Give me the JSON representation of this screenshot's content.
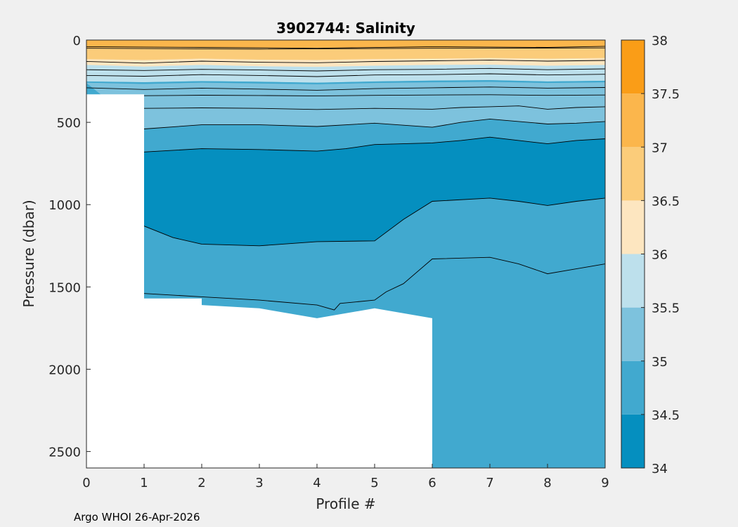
{
  "chart_data": {
    "type": "filled-contour",
    "title": "3902744:  Salinity",
    "xlabel": "Profile #",
    "ylabel": "Pressure (dbar)",
    "xlim": [
      0,
      9
    ],
    "ylim": [
      0,
      2600
    ],
    "y_reversed": true,
    "xticks": [
      0,
      1,
      2,
      3,
      4,
      5,
      6,
      7,
      8,
      9
    ],
    "yticks": [
      0,
      500,
      1000,
      1500,
      2000,
      2500
    ],
    "colorbar": {
      "levels": [
        34,
        34.5,
        35,
        35.5,
        36,
        36.5,
        37,
        37.5,
        38
      ],
      "tick_labels": [
        "34",
        "34.5",
        "35",
        "35.5",
        "36",
        "36.5",
        "37",
        "37.5",
        "38"
      ],
      "colors": [
        "#058fbf",
        "#41a9cf",
        "#7dc2dd",
        "#bde0ec",
        "#fde6c0",
        "#fbcc7a",
        "#fbb64c",
        "#fa9d17"
      ]
    },
    "background_color": "#41a9cf",
    "contour_bands": [
      {
        "color": "#058fbf",
        "top": [
          [
            1,
            680
          ],
          [
            2,
            660
          ],
          [
            3,
            665
          ],
          [
            4,
            675
          ],
          [
            4.5,
            660
          ],
          [
            5,
            635
          ],
          [
            6,
            625
          ],
          [
            6.5,
            610
          ],
          [
            7,
            590
          ],
          [
            7.5,
            610
          ],
          [
            8,
            630
          ],
          [
            8.5,
            610
          ],
          [
            9,
            600
          ]
        ],
        "bottom": [
          [
            1,
            1130
          ],
          [
            1.5,
            1200
          ],
          [
            2,
            1240
          ],
          [
            3,
            1250
          ],
          [
            4,
            1225
          ],
          [
            5,
            1220
          ],
          [
            5.5,
            1090
          ],
          [
            6,
            980
          ],
          [
            7,
            960
          ],
          [
            7.5,
            980
          ],
          [
            8,
            1005
          ],
          [
            8.5,
            980
          ],
          [
            9,
            960
          ]
        ]
      },
      {
        "color": "#7dc2dd",
        "top": [
          [
            0,
            260
          ],
          [
            1,
            268
          ],
          [
            2,
            260
          ],
          [
            3,
            265
          ],
          [
            4,
            270
          ],
          [
            5,
            262
          ],
          [
            6,
            258
          ],
          [
            7,
            255
          ],
          [
            8,
            262
          ],
          [
            9,
            258
          ]
        ],
        "bottom": [
          [
            1,
            540
          ],
          [
            2,
            515
          ],
          [
            3,
            515
          ],
          [
            4,
            525
          ],
          [
            5,
            505
          ],
          [
            6,
            530
          ],
          [
            6.5,
            500
          ],
          [
            7,
            480
          ],
          [
            7.5,
            495
          ],
          [
            8,
            510
          ],
          [
            8.5,
            505
          ],
          [
            9,
            495
          ]
        ]
      },
      {
        "color": "#bde0ec",
        "top": [
          [
            0,
            150
          ],
          [
            1,
            160
          ],
          [
            2,
            150
          ],
          [
            3,
            158
          ],
          [
            4,
            162
          ],
          [
            5,
            155
          ],
          [
            6,
            150
          ],
          [
            7,
            148
          ],
          [
            8,
            155
          ],
          [
            9,
            150
          ]
        ],
        "bottom": [
          [
            0,
            250
          ],
          [
            1,
            255
          ],
          [
            2,
            248
          ],
          [
            3,
            252
          ],
          [
            4,
            258
          ],
          [
            5,
            250
          ],
          [
            6,
            245
          ],
          [
            7,
            242
          ],
          [
            8,
            250
          ],
          [
            9,
            246
          ]
        ]
      },
      {
        "color": "#fde6c0",
        "top": [
          [
            0,
            115
          ],
          [
            1,
            120
          ],
          [
            2,
            112
          ],
          [
            3,
            118
          ],
          [
            4,
            120
          ],
          [
            5,
            114
          ],
          [
            6,
            112
          ],
          [
            7,
            108
          ],
          [
            8,
            112
          ],
          [
            9,
            108
          ]
        ],
        "bottom": [
          [
            0,
            150
          ],
          [
            1,
            160
          ],
          [
            2,
            150
          ],
          [
            3,
            158
          ],
          [
            4,
            162
          ],
          [
            5,
            155
          ],
          [
            6,
            150
          ],
          [
            7,
            148
          ],
          [
            8,
            155
          ],
          [
            9,
            150
          ]
        ]
      },
      {
        "color": "#fbcc7a",
        "top": [
          [
            0,
            45
          ],
          [
            1,
            45
          ],
          [
            2,
            44
          ],
          [
            3,
            48
          ],
          [
            4,
            45
          ],
          [
            5,
            46
          ],
          [
            6,
            46
          ],
          [
            7,
            44
          ],
          [
            8,
            45
          ],
          [
            9,
            40
          ]
        ],
        "bottom": [
          [
            0,
            115
          ],
          [
            1,
            120
          ],
          [
            2,
            112
          ],
          [
            3,
            118
          ],
          [
            4,
            120
          ],
          [
            5,
            114
          ],
          [
            6,
            112
          ],
          [
            7,
            108
          ],
          [
            8,
            112
          ],
          [
            9,
            108
          ]
        ]
      },
      {
        "color": "#fbb64c",
        "top": [
          [
            0,
            0
          ],
          [
            9,
            0
          ]
        ],
        "bottom": [
          [
            0,
            45
          ],
          [
            1,
            45
          ],
          [
            2,
            44
          ],
          [
            3,
            48
          ],
          [
            4,
            45
          ],
          [
            5,
            46
          ],
          [
            6,
            46
          ],
          [
            7,
            44
          ],
          [
            8,
            45
          ],
          [
            9,
            40
          ]
        ]
      }
    ],
    "contour_lines": [
      [
        [
          0,
          40
        ],
        [
          2,
          45
        ],
        [
          4,
          50
        ],
        [
          6,
          40
        ],
        [
          8,
          45
        ],
        [
          9,
          38
        ]
      ],
      [
        [
          0,
          50
        ],
        [
          3,
          55
        ],
        [
          6,
          50
        ],
        [
          9,
          48
        ]
      ],
      [
        [
          0,
          130
        ],
        [
          1,
          140
        ],
        [
          2,
          128
        ],
        [
          3,
          135
        ],
        [
          4,
          138
        ],
        [
          5,
          130
        ],
        [
          6,
          126
        ],
        [
          7,
          122
        ],
        [
          8,
          128
        ],
        [
          9,
          124
        ]
      ],
      [
        [
          0,
          180
        ],
        [
          1,
          185
        ],
        [
          2,
          178
        ],
        [
          3,
          182
        ],
        [
          4,
          188
        ],
        [
          5,
          180
        ],
        [
          6,
          178
        ],
        [
          7,
          172
        ],
        [
          8,
          180
        ],
        [
          9,
          175
        ]
      ],
      [
        [
          0,
          215
        ],
        [
          1,
          220
        ],
        [
          2,
          210
        ],
        [
          3,
          215
        ],
        [
          4,
          222
        ],
        [
          5,
          212
        ],
        [
          6,
          210
        ],
        [
          7,
          205
        ],
        [
          8,
          212
        ],
        [
          9,
          208
        ]
      ],
      [
        [
          0,
          290
        ],
        [
          1,
          300
        ],
        [
          2,
          292
        ],
        [
          3,
          298
        ],
        [
          4,
          305
        ],
        [
          5,
          295
        ],
        [
          6,
          290
        ],
        [
          7,
          285
        ],
        [
          8,
          292
        ],
        [
          9,
          288
        ]
      ],
      [
        [
          0,
          335
        ],
        [
          1,
          338
        ],
        [
          2,
          335
        ],
        [
          3,
          337
        ],
        [
          4,
          340
        ],
        [
          5,
          336
        ],
        [
          6,
          334
        ],
        [
          7,
          332
        ],
        [
          8,
          336
        ],
        [
          9,
          334
        ]
      ],
      [
        [
          1,
          415
        ],
        [
          2,
          412
        ],
        [
          3,
          415
        ],
        [
          4,
          422
        ],
        [
          5,
          415
        ],
        [
          6,
          420
        ],
        [
          6.5,
          410
        ],
        [
          7,
          405
        ],
        [
          7.5,
          400
        ],
        [
          8,
          420
        ],
        [
          8.5,
          410
        ],
        [
          9,
          405
        ]
      ],
      [
        [
          1,
          540
        ],
        [
          2,
          515
        ],
        [
          3,
          515
        ],
        [
          4,
          525
        ],
        [
          5,
          505
        ],
        [
          6,
          530
        ],
        [
          6.5,
          500
        ],
        [
          7,
          480
        ],
        [
          7.5,
          495
        ],
        [
          8,
          510
        ],
        [
          8.5,
          505
        ],
        [
          9,
          495
        ]
      ],
      [
        [
          1,
          680
        ],
        [
          2,
          660
        ],
        [
          3,
          665
        ],
        [
          4,
          675
        ],
        [
          4.5,
          660
        ],
        [
          5,
          635
        ],
        [
          6,
          625
        ],
        [
          6.5,
          610
        ],
        [
          7,
          590
        ],
        [
          7.5,
          610
        ],
        [
          8,
          630
        ],
        [
          8.5,
          610
        ],
        [
          9,
          600
        ]
      ],
      [
        [
          1,
          1130
        ],
        [
          1.5,
          1200
        ],
        [
          2,
          1240
        ],
        [
          3,
          1250
        ],
        [
          4,
          1225
        ],
        [
          5,
          1220
        ],
        [
          5.5,
          1090
        ],
        [
          6,
          980
        ],
        [
          7,
          960
        ],
        [
          7.5,
          980
        ],
        [
          8,
          1005
        ],
        [
          8.5,
          980
        ],
        [
          9,
          960
        ]
      ],
      [
        [
          1,
          1540
        ],
        [
          2,
          1560
        ],
        [
          3,
          1580
        ],
        [
          4,
          1610
        ],
        [
          4.3,
          1640
        ],
        [
          4.4,
          1600
        ],
        [
          5,
          1580
        ],
        [
          5.2,
          1530
        ],
        [
          5.5,
          1480
        ],
        [
          6,
          1330
        ],
        [
          7,
          1320
        ],
        [
          7.5,
          1360
        ],
        [
          8,
          1420
        ],
        [
          8.5,
          1390
        ],
        [
          9,
          1360
        ]
      ]
    ],
    "no_data_mask": [
      [
        0,
        330
      ],
      [
        1,
        330
      ],
      [
        1,
        1570
      ],
      [
        2,
        1570
      ],
      [
        2,
        1610
      ],
      [
        3,
        1630
      ],
      [
        4,
        1690
      ],
      [
        5,
        1630
      ],
      [
        6,
        1690
      ],
      [
        6,
        2600
      ],
      [
        0,
        2600
      ]
    ],
    "footer": "Argo WHOI 26-Apr-2026"
  }
}
